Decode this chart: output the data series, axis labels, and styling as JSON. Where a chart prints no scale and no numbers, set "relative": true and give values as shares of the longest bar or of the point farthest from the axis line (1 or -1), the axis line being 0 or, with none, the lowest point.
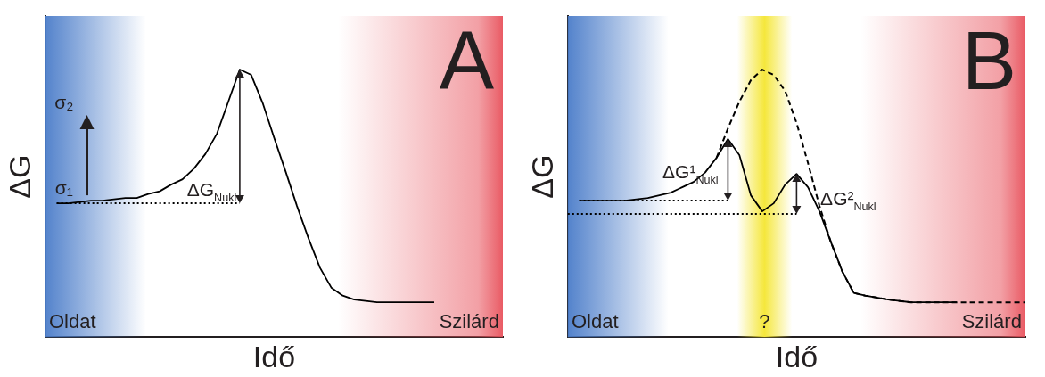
{
  "chart_data": [
    {
      "type": "line",
      "title": "A",
      "xlabel": "Idő",
      "ylabel": "ΔG",
      "relative": true,
      "tick_labels": false,
      "categories": [
        null,
        null,
        null,
        null,
        null,
        null,
        null,
        null,
        null,
        null,
        null,
        null,
        null,
        null,
        null,
        null,
        null,
        null,
        null,
        null,
        null,
        null,
        null,
        null,
        null,
        null,
        null,
        null,
        null,
        null,
        null,
        null,
        null,
        null,
        null,
        null,
        null,
        null,
        null,
        null,
        null
      ],
      "series": [
        {
          "color": "#000000",
          "line_style": "solid",
          "values": [
            null,
            0.5,
            0.5,
            0.505,
            0.51,
            0.51,
            0.515,
            0.52,
            0.52,
            0.535,
            0.545,
            0.57,
            0.59,
            0.63,
            0.685,
            0.76,
            0.88,
            1,
            0.98,
            0.875,
            0.745,
            0.62,
            0.49,
            0.37,
            0.26,
            0.185,
            0.155,
            0.14,
            0.135,
            0.13,
            0.13,
            0.13,
            0.13,
            0.13,
            0.13,
            null,
            null,
            null,
            null,
            null,
            null
          ]
        },
        {
          "color": "#000000",
          "line_style": "dotted",
          "values": [
            null,
            0.5,
            0.5,
            0.5,
            0.5,
            0.5,
            0.5,
            0.5,
            0.5,
            0.5,
            0.5,
            0.5,
            0.5,
            0.5,
            0.5,
            0.5,
            0.5,
            0.5,
            null,
            null,
            null,
            null,
            null,
            null,
            null,
            null,
            null,
            null,
            null,
            null,
            null,
            null,
            null,
            null,
            null,
            null,
            null,
            null,
            null,
            null,
            null
          ]
        }
      ],
      "annotations": [
        "σ₁",
        "σ₂",
        "ΔG$_{Nukl}$",
        "Oldat",
        "Szilárd"
      ]
    },
    {
      "type": "line",
      "title": "B",
      "xlabel": "Idő",
      "ylabel": "ΔG",
      "relative": true,
      "tick_labels": false,
      "categories": [
        null,
        null,
        null,
        null,
        null,
        null,
        null,
        null,
        null,
        null,
        null,
        null,
        null,
        null,
        null,
        null,
        null,
        null,
        null,
        null,
        null,
        null,
        null,
        null,
        null,
        null,
        null,
        null,
        null,
        null,
        null,
        null,
        null,
        null,
        null,
        null,
        null,
        null,
        null,
        null,
        null
      ],
      "series": [
        {
          "color": "#000000",
          "line_style": "solid",
          "values": [
            null,
            0.51,
            0.51,
            0.51,
            0.51,
            0.51,
            0.515,
            0.52,
            0.53,
            0.54,
            0.56,
            0.58,
            0.615,
            0.67,
            0.74,
            0.68,
            0.53,
            0.47,
            0.5,
            0.57,
            0.61,
            0.56,
            0.47,
            0.355,
            0.245,
            0.165,
            0.155,
            0.148,
            0.14,
            0.135,
            0.13,
            0.13,
            0.13,
            0.13,
            0.13,
            null,
            null,
            null,
            null,
            null,
            null
          ]
        },
        {
          "color": "#000000",
          "line_style": "dashed",
          "values": [
            null,
            null,
            null,
            null,
            null,
            null,
            null,
            null,
            null,
            null,
            null,
            null,
            null,
            0.67,
            0.78,
            0.88,
            0.96,
            1,
            0.98,
            0.92,
            0.8,
            0.65,
            0.49,
            0.355,
            0.245,
            0.165,
            0.155,
            0.148,
            0.14,
            0.135,
            0.13,
            0.13,
            0.13,
            0.13,
            0.13,
            0.13,
            0.13,
            0.13,
            0.13,
            0.13,
            0.13
          ]
        },
        {
          "color": "#000000",
          "line_style": "dotted",
          "values": [
            null,
            0.51,
            0.51,
            0.51,
            0.51,
            0.51,
            0.51,
            0.51,
            0.51,
            0.51,
            0.51,
            0.51,
            0.51,
            0.51,
            0.51,
            null,
            null,
            null,
            null,
            null,
            null,
            null,
            null,
            null,
            null,
            null,
            null,
            null,
            null,
            null,
            null,
            null,
            null,
            null,
            null,
            null,
            null,
            null,
            null,
            null,
            null
          ]
        },
        {
          "color": "#000000",
          "line_style": "dotted",
          "values": [
            0.46,
            0.46,
            0.46,
            0.46,
            0.46,
            0.46,
            0.46,
            0.46,
            0.46,
            0.46,
            0.46,
            0.46,
            0.46,
            0.46,
            0.46,
            0.46,
            0.46,
            0.46,
            0.46,
            0.46,
            0.46,
            null,
            null,
            null,
            null,
            null,
            null,
            null,
            null,
            null,
            null,
            null,
            null,
            null,
            null,
            null,
            null,
            null,
            null,
            null,
            null
          ]
        }
      ],
      "annotations": [
        "ΔG¹$_{Nukl}$",
        "ΔG²$_{Nukl}$",
        "?",
        "Oldat",
        "Szilárd"
      ]
    }
  ]
}
